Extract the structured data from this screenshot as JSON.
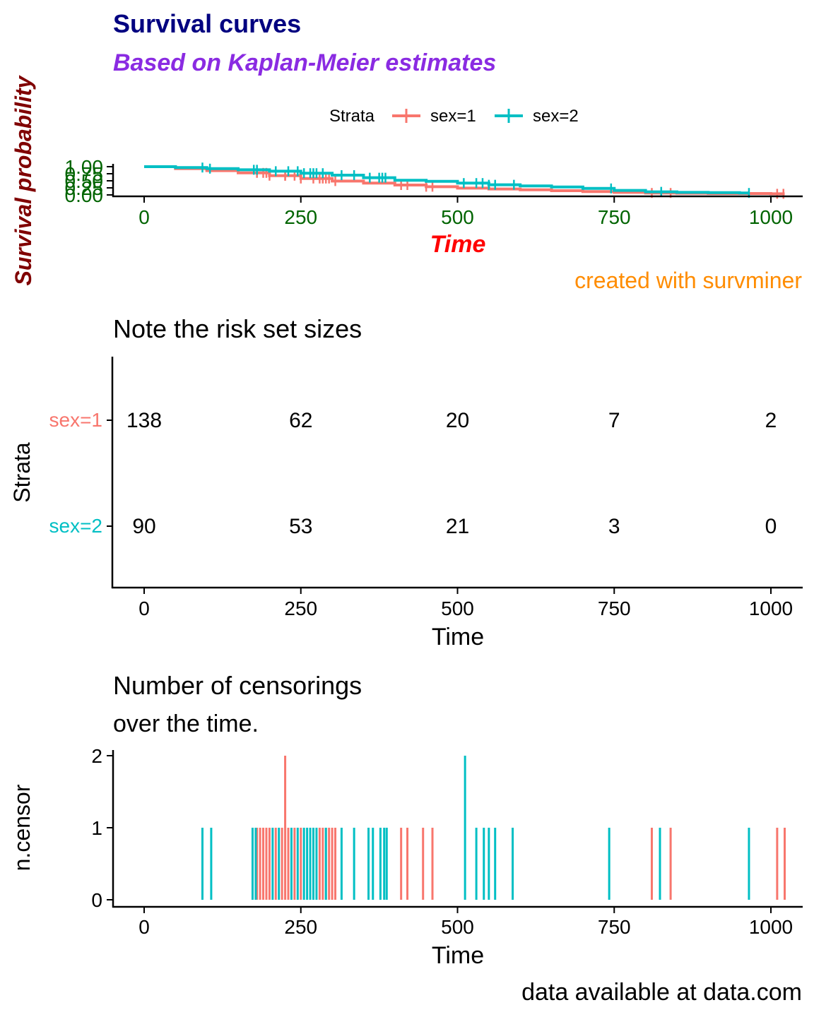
{
  "colors": {
    "sex1": "#F8766D",
    "sex2": "#00BFC4",
    "title": "#000080",
    "subtitle": "#8A2BE2",
    "xlab": "#FF0000",
    "ylab": "#800000",
    "ticks": "#006400",
    "caption": "#FF8C00",
    "axis": "#000000"
  },
  "chart_data": [
    {
      "type": "line",
      "title": "Survival curves",
      "subtitle": "Based on Kaplan-Meier estimates",
      "xlabel": "Time",
      "ylabel": "Survival probability",
      "caption": "created with survminer",
      "legend": {
        "title": "Strata",
        "position": "top",
        "entries": [
          "sex=1",
          "sex=2"
        ]
      },
      "xlim": [
        0,
        1022
      ],
      "ylim": [
        0,
        1
      ],
      "xticks": [
        "0",
        "250",
        "500",
        "750",
        "1000"
      ],
      "xtick_values": [
        0,
        250,
        500,
        750,
        1000
      ],
      "yticks": [
        "0.00",
        "0.25",
        "0.50",
        "0.75",
        "1.00"
      ],
      "ytick_values": [
        0,
        0.25,
        0.5,
        0.75,
        1
      ],
      "grid": false,
      "series": [
        {
          "name": "sex=1",
          "x": [
            0,
            50,
            100,
            150,
            200,
            250,
            300,
            350,
            400,
            450,
            500,
            550,
            600,
            650,
            700,
            750,
            800,
            850,
            900,
            950,
            1000,
            1022
          ],
          "y": [
            1.0,
            0.93,
            0.86,
            0.78,
            0.68,
            0.58,
            0.49,
            0.42,
            0.35,
            0.29,
            0.24,
            0.21,
            0.18,
            0.15,
            0.12,
            0.09,
            0.07,
            0.06,
            0.05,
            0.05,
            0.04,
            0.04
          ],
          "censor_x": [
            180,
            190,
            195,
            200,
            225,
            225,
            240,
            250,
            270,
            280,
            285,
            290,
            295,
            305,
            410,
            420,
            450,
            460,
            810,
            840,
            1010,
            1020
          ]
        },
        {
          "name": "sex=2",
          "x": [
            0,
            50,
            100,
            150,
            200,
            250,
            300,
            350,
            400,
            450,
            500,
            550,
            600,
            650,
            700,
            750,
            800,
            850,
            900,
            950,
            965
          ],
          "y": [
            1.0,
            0.97,
            0.93,
            0.89,
            0.84,
            0.77,
            0.7,
            0.61,
            0.52,
            0.48,
            0.42,
            0.36,
            0.32,
            0.28,
            0.23,
            0.16,
            0.11,
            0.09,
            0.08,
            0.07,
            0.07
          ],
          "censor_x": [
            93,
            105,
            175,
            180,
            210,
            230,
            245,
            255,
            265,
            270,
            275,
            285,
            315,
            335,
            360,
            375,
            380,
            385,
            510,
            530,
            540,
            550,
            560,
            590,
            745,
            825,
            965
          ]
        }
      ]
    },
    {
      "type": "table",
      "title": "Note the risk set sizes",
      "xlabel": "Time",
      "ylabel": "Strata",
      "xticks": [
        "0",
        "250",
        "500",
        "750",
        "1000"
      ],
      "x": [
        0,
        250,
        500,
        750,
        1000
      ],
      "rows": [
        {
          "name": "sex=1",
          "values": [
            "138",
            "62",
            "20",
            "7",
            "2"
          ]
        },
        {
          "name": "sex=2",
          "values": [
            "90",
            "53",
            "21",
            "3",
            "0"
          ]
        }
      ]
    },
    {
      "type": "bar",
      "title": "Number of censorings",
      "subtitle": "over the time.",
      "xlabel": "Time",
      "ylabel": "n.censor",
      "caption": "data available at data.com",
      "xticks": [
        "0",
        "250",
        "500",
        "750",
        "1000"
      ],
      "xtick_values": [
        0,
        250,
        500,
        750,
        1000
      ],
      "yticks": [
        "0",
        "1",
        "2"
      ],
      "ytick_values": [
        0,
        1,
        2
      ],
      "ylim": [
        0,
        2
      ],
      "series": [
        {
          "name": "sex=1",
          "x": [
            180,
            185,
            190,
            195,
            200,
            210,
            220,
            225,
            230,
            240,
            250,
            270,
            280,
            285,
            290,
            295,
            300,
            305,
            410,
            420,
            445,
            460,
            810,
            840,
            1010,
            1022
          ],
          "y": [
            1,
            1,
            1,
            1,
            1,
            1,
            1,
            2,
            1,
            1,
            1,
            1,
            1,
            1,
            1,
            1,
            1,
            1,
            1,
            1,
            1,
            1,
            1,
            1,
            1,
            1
          ]
        },
        {
          "name": "sex=2",
          "x": [
            93,
            107,
            173,
            178,
            205,
            215,
            235,
            245,
            255,
            260,
            265,
            270,
            275,
            290,
            315,
            335,
            358,
            365,
            377,
            383,
            387,
            512,
            530,
            542,
            550,
            560,
            588,
            742,
            823,
            965
          ],
          "y": [
            1,
            1,
            1,
            1,
            1,
            1,
            1,
            1,
            1,
            1,
            1,
            1,
            1,
            1,
            1,
            1,
            1,
            1,
            1,
            1,
            1,
            2,
            1,
            1,
            1,
            1,
            1,
            1,
            1,
            1
          ]
        }
      ]
    }
  ]
}
